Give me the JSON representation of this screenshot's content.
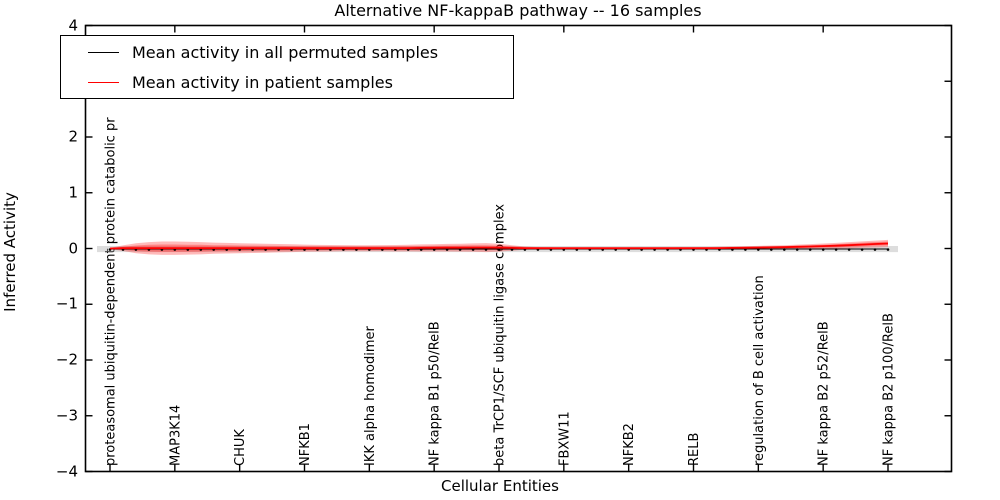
{
  "chart_data": {
    "type": "line",
    "title": "Alternative NF-kappaB pathway -- 16 samples",
    "xlabel": "Cellular Entities",
    "ylabel": "Inferred Activity",
    "ylim": [
      -4,
      4
    ],
    "yticks": [
      4,
      3,
      2,
      1,
      0,
      -1,
      -2,
      -3,
      -4
    ],
    "ytick_labels": [
      "4",
      "3",
      "2",
      "1",
      "0",
      "−1",
      "−2",
      "−3",
      "−4"
    ],
    "grid": false,
    "n_points": 61,
    "tick_label_indices": [
      0,
      5,
      10,
      15,
      20,
      25,
      30,
      35,
      40,
      45,
      50,
      55,
      60
    ],
    "top_tick_indices": [
      5,
      15,
      25,
      35,
      45,
      55
    ],
    "categories": [
      "proteasomal ubiquitin-dependent protein catabolic pr",
      "MAP3K14",
      "CHUK",
      "NFKB1",
      "IKK alpha homodimer",
      "NF kappa B1 p50/RelB",
      "beta TrCP1/SCF ubiquitin ligase complex",
      "FBXW11",
      "NFKB2",
      "RELB",
      "regulation of B cell activation",
      "NF kappa B2 p52/RelB",
      "NF kappa B2 p100/RelB"
    ],
    "legend": {
      "position": "upper left",
      "entries": [
        {
          "label": "Mean activity in all permuted samples",
          "color": "#000000"
        },
        {
          "label": "Mean activity in patient samples",
          "color": "#ff0000"
        }
      ]
    },
    "series": [
      {
        "name": "Mean activity in all permuted samples",
        "color": "#000000",
        "band_color": "#aaaaaa",
        "marker": "dot",
        "mean_constant": -0.01,
        "std_constant": 0.055
      },
      {
        "name": "Mean activity in patient samples",
        "color": "#ff0000",
        "band_color": "#ff0000",
        "marker": "none",
        "mean": [
          0,
          0.005,
          0.005,
          0.005,
          0.005,
          0.005,
          0.005,
          0.005,
          0.005,
          0.005,
          0.005,
          0.005,
          0.005,
          0.005,
          0.005,
          0.005,
          0.005,
          0.005,
          0.005,
          0.005,
          0.005,
          0.005,
          0.005,
          0.008,
          0.01,
          0.012,
          0.014,
          0.015,
          0.016,
          0.016,
          0.014,
          0.01,
          0.006,
          0.005,
          0.005,
          0.005,
          0.005,
          0.005,
          0.005,
          0.005,
          0.005,
          0.005,
          0.005,
          0.005,
          0.005,
          0.005,
          0.006,
          0.008,
          0.01,
          0.013,
          0.016,
          0.02,
          0.024,
          0.03,
          0.036,
          0.043,
          0.05,
          0.06,
          0.07,
          0.08,
          0.09
        ],
        "std": [
          0.01,
          0.05,
          0.09,
          0.11,
          0.12,
          0.12,
          0.115,
          0.11,
          0.1,
          0.095,
          0.09,
          0.085,
          0.08,
          0.075,
          0.07,
          0.065,
          0.06,
          0.058,
          0.056,
          0.055,
          0.055,
          0.056,
          0.058,
          0.06,
          0.063,
          0.066,
          0.068,
          0.07,
          0.075,
          0.08,
          0.07,
          0.05,
          0.03,
          0.02,
          0.015,
          0.012,
          0.01,
          0.01,
          0.01,
          0.01,
          0.01,
          0.012,
          0.013,
          0.015,
          0.016,
          0.018,
          0.02,
          0.022,
          0.025,
          0.028,
          0.03,
          0.033,
          0.036,
          0.04,
          0.043,
          0.047,
          0.05,
          0.054,
          0.058,
          0.062,
          0.065
        ]
      }
    ]
  }
}
